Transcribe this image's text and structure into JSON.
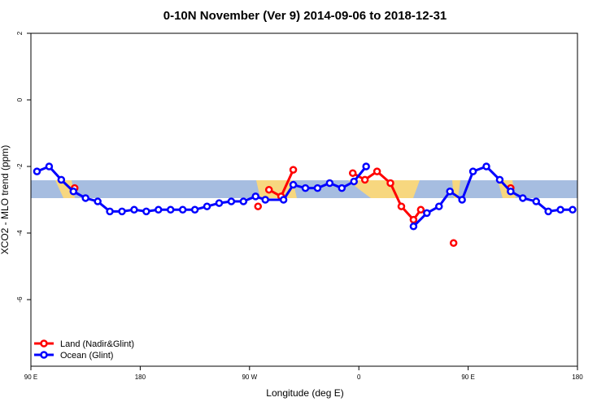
{
  "chart_data": {
    "type": "line",
    "title": "0-10N November (Ver 9)   2014-09-06 to 2018-12-31",
    "x_label": "Longitude (deg E)",
    "y_label": "XCO2 - MLO trend (ppm)",
    "xlim": [
      90,
      540
    ],
    "ylim": [
      -8,
      2
    ],
    "xticks": [
      {
        "value": 90,
        "label": "90 E"
      },
      180,
      {
        "value": 270,
        "label": "90 W"
      },
      {
        "value": 360,
        "label": "0"
      },
      {
        "value": 450,
        "label": "90 E"
      },
      {
        "value": 540,
        "label": "180"
      }
    ],
    "yticks": [
      -6,
      -4,
      -2,
      0,
      2
    ],
    "legend": "bottom-left",
    "series": [
      {
        "name": "Land (Nadir&Glint)",
        "color": "#ff0000",
        "x": [
          126,
          null,
          277,
          null,
          286,
          296,
          306,
          null,
          355,
          365,
          375,
          386,
          395,
          405,
          411,
          null,
          438,
          null,
          485
        ],
        "values": [
          -2.65,
          null,
          -3.2,
          null,
          -2.7,
          -2.9,
          -2.1,
          null,
          -2.2,
          -2.4,
          -2.15,
          -2.5,
          -3.2,
          -3.6,
          -3.3,
          null,
          -4.3,
          null,
          -2.65
        ]
      },
      {
        "name": "Ocean (Glint)",
        "color": "#0000ff",
        "x": [
          95,
          105,
          115,
          125,
          135,
          145,
          155,
          165,
          175,
          185,
          195,
          205,
          215,
          225,
          235,
          245,
          255,
          265,
          275,
          283,
          298,
          306,
          316,
          326,
          336,
          346,
          356,
          366,
          null,
          405,
          416,
          426,
          435,
          445,
          454,
          465,
          476,
          485,
          495,
          506,
          516,
          526,
          536
        ],
        "values": [
          -2.15,
          -2.0,
          -2.4,
          -2.75,
          -2.95,
          -3.05,
          -3.35,
          -3.35,
          -3.3,
          -3.35,
          -3.3,
          -3.3,
          -3.3,
          -3.3,
          -3.2,
          -3.1,
          -3.05,
          -3.05,
          -2.9,
          -3.0,
          -3.0,
          -2.55,
          -2.65,
          -2.65,
          -2.5,
          -2.65,
          -2.45,
          -2.0,
          null,
          -3.8,
          -3.4,
          -3.2,
          -2.75,
          -3.0,
          -2.15,
          -2.0,
          -2.4,
          -2.75,
          -2.95,
          -3.05,
          -3.35,
          -3.3,
          -3.3
        ]
      }
    ]
  }
}
